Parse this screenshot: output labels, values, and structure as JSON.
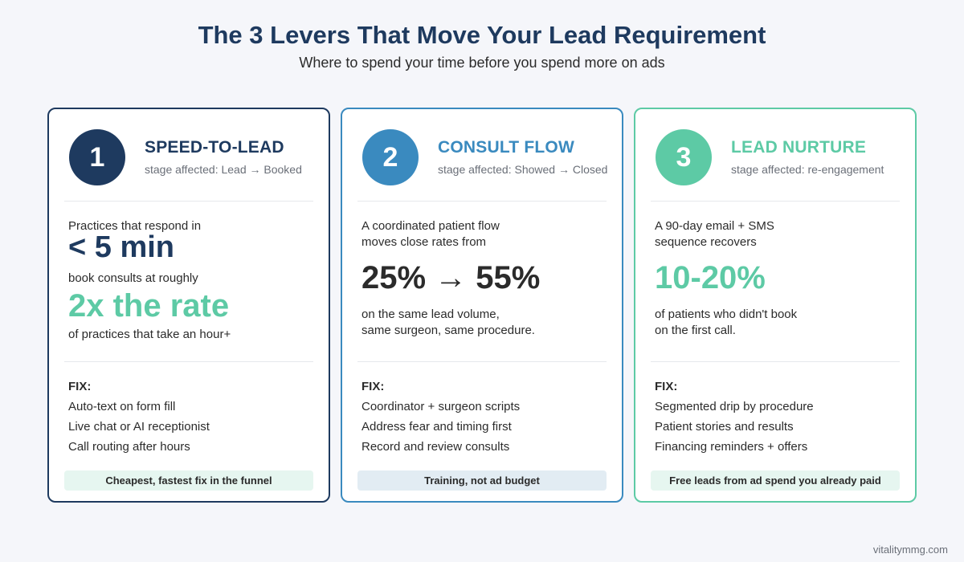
{
  "header": {
    "title": "The 3 Levers That Move Your Lead Requirement",
    "subtitle": "Where to spend your time before you spend more on ads"
  },
  "cards": [
    {
      "number": "1",
      "heading": "SPEED-TO-LEAD",
      "stage": "stage affected: Lead → Booked",
      "text1": "Practices that respond in",
      "big1": "< 5 min",
      "text2": "book consults at roughly",
      "big2": "2x the rate",
      "text3": "of practices that take an hour+",
      "fix_label": "FIX:",
      "fixes": [
        "Auto-text on form fill",
        "Live chat or AI receptionist",
        "Call routing after hours"
      ],
      "footer": "Cheapest, fastest fix in the funnel"
    },
    {
      "number": "2",
      "heading": "CONSULT FLOW",
      "stage": "stage affected: Showed → Closed",
      "text1a": "A coordinated patient flow",
      "text1b": "moves close rates from",
      "big1": "25% → 55%",
      "text2a": "on the same lead volume,",
      "text2b": "same surgeon, same procedure.",
      "fix_label": "FIX:",
      "fixes": [
        "Coordinator + surgeon scripts",
        "Address fear and timing first",
        "Record and review consults"
      ],
      "footer": "Training, not ad budget"
    },
    {
      "number": "3",
      "heading": "LEAD NURTURE",
      "stage": "stage affected: re-engagement",
      "text1a": "A 90-day email + SMS",
      "text1b": "sequence recovers",
      "big1": "10-20%",
      "text2a": "of patients who didn't book",
      "text2b": "on the first call.",
      "fix_label": "FIX:",
      "fixes": [
        "Segmented drip by procedure",
        "Patient stories and results",
        "Financing reminders + offers"
      ],
      "footer": "Free leads from ad spend you already paid"
    }
  ],
  "credit": "vitalitymmg.com",
  "colors": {
    "navy": "#1e3a5f",
    "blue": "#3a8abf",
    "green": "#5dcaa5"
  }
}
